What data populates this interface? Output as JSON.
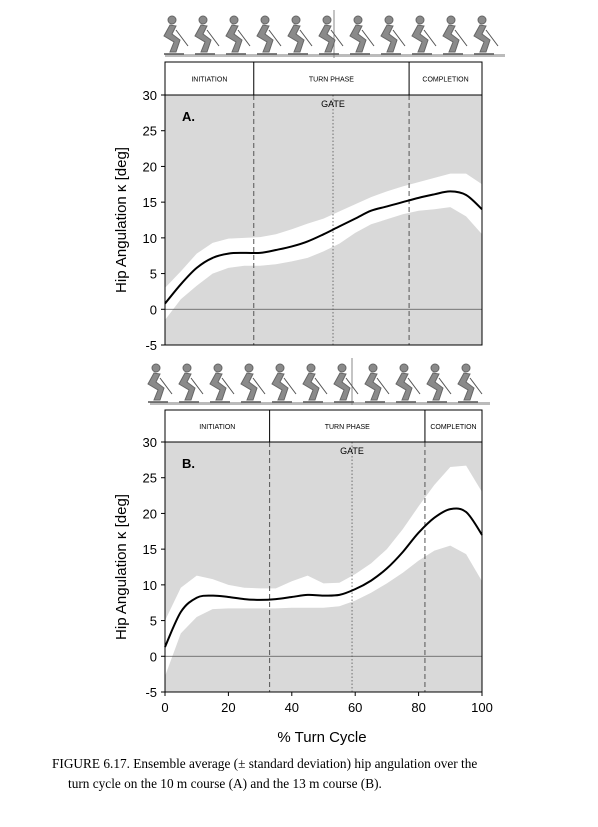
{
  "chart_data": [
    {
      "type": "area",
      "panel_label": "A.",
      "ylabel": "Hip Angulation κ [deg]",
      "ylim": [
        -5,
        30
      ],
      "yticks": [
        -5,
        0,
        5,
        10,
        15,
        20,
        25,
        30
      ],
      "xlim": [
        0,
        100
      ],
      "phases": [
        "INITIATION",
        "TURN PHASE",
        "COMPLETION"
      ],
      "phase_boundaries": [
        28,
        77
      ],
      "gate_label": "GATE",
      "gate_x": 53,
      "x": [
        0,
        5,
        10,
        15,
        20,
        25,
        30,
        35,
        40,
        45,
        50,
        55,
        60,
        65,
        70,
        75,
        80,
        85,
        90,
        95,
        100
      ],
      "mean": [
        0.8,
        3.5,
        5.8,
        7.2,
        7.8,
        7.9,
        7.9,
        8.3,
        8.8,
        9.5,
        10.5,
        11.6,
        12.7,
        13.8,
        14.4,
        15.0,
        15.6,
        16.1,
        16.5,
        16.0,
        14.0
      ],
      "upper": [
        3.0,
        5.3,
        7.8,
        9.3,
        9.9,
        10.0,
        10.1,
        10.5,
        11.2,
        12.0,
        12.7,
        13.7,
        14.7,
        15.7,
        16.5,
        17.2,
        17.8,
        18.4,
        19.0,
        19.0,
        17.5
      ],
      "lower": [
        -1.5,
        1.4,
        3.3,
        5.0,
        5.8,
        6.1,
        6.1,
        6.3,
        6.7,
        7.2,
        8.1,
        9.2,
        10.7,
        11.9,
        12.6,
        13.3,
        13.8,
        14.0,
        14.3,
        13.0,
        10.5
      ]
    },
    {
      "type": "area",
      "panel_label": "B.",
      "ylabel": "Hip Angulation κ [deg]",
      "xlabel": "% Turn Cycle",
      "ylim": [
        -5,
        30
      ],
      "yticks": [
        -5,
        0,
        5,
        10,
        15,
        20,
        25,
        30
      ],
      "xlim": [
        0,
        100
      ],
      "xticks": [
        0,
        20,
        40,
        60,
        80,
        100
      ],
      "phases": [
        "INITIATION",
        "TURN PHASE",
        "COMPLETION"
      ],
      "phase_boundaries": [
        33,
        82
      ],
      "gate_label": "GATE",
      "gate_x": 59,
      "x": [
        0,
        5,
        10,
        15,
        20,
        25,
        30,
        35,
        40,
        45,
        50,
        55,
        60,
        65,
        70,
        75,
        80,
        85,
        90,
        95,
        100
      ],
      "mean": [
        1.3,
        6.2,
        8.2,
        8.5,
        8.3,
        8.0,
        7.9,
        8.0,
        8.3,
        8.6,
        8.5,
        8.6,
        9.4,
        10.6,
        12.3,
        14.6,
        17.3,
        19.4,
        20.6,
        20.2,
        17.0
      ],
      "upper": [
        5.0,
        9.6,
        11.3,
        10.8,
        10.0,
        9.6,
        9.5,
        9.5,
        10.5,
        11.3,
        10.2,
        10.3,
        11.5,
        13.0,
        15.0,
        17.8,
        21.0,
        24.0,
        26.5,
        26.7,
        23.0
      ],
      "lower": [
        -2.8,
        3.2,
        5.5,
        6.6,
        6.7,
        6.7,
        6.7,
        6.7,
        6.8,
        6.8,
        6.8,
        7.0,
        7.8,
        8.9,
        10.2,
        11.7,
        13.4,
        14.8,
        15.5,
        14.3,
        10.5
      ]
    }
  ],
  "caption": {
    "line1": "FIGURE 6.17.  Ensemble average (± standard deviation) hip angulation over the",
    "line2": "turn cycle on the 10 m course (A) and the 13 m course (B)."
  },
  "colors": {
    "band_background": "#d9d9d9",
    "sd_band": "#ffffff",
    "mean_line": "#000000",
    "phase_line": "#555555"
  }
}
